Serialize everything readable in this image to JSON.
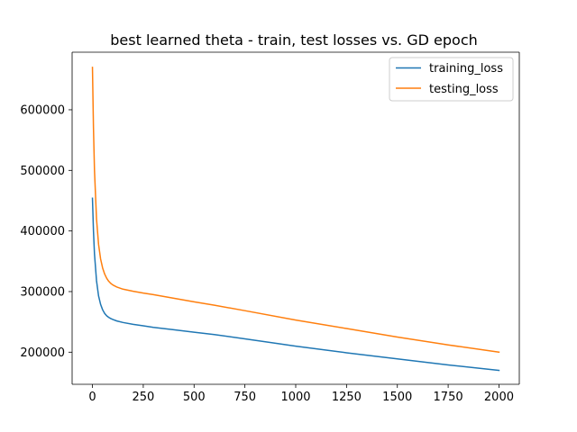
{
  "chart_data": {
    "type": "line",
    "title": "best learned theta - train, test losses vs. GD epoch",
    "xlabel": "",
    "ylabel": "",
    "xlim": [
      -100,
      2100
    ],
    "ylim": [
      147000,
      695000
    ],
    "xticks": [
      0,
      250,
      500,
      750,
      1000,
      1250,
      1500,
      1750,
      2000
    ],
    "yticks": [
      200000,
      300000,
      400000,
      500000,
      600000
    ],
    "grid": false,
    "legend_position": "top-right",
    "series": [
      {
        "name": "training_loss",
        "color": "#1f77b4",
        "x": [
          0,
          5,
          10,
          20,
          30,
          40,
          50,
          60,
          70,
          80,
          90,
          100,
          120,
          150,
          200,
          250,
          300,
          400,
          500,
          600,
          750,
          1000,
          1250,
          1500,
          1750,
          2000
        ],
        "y": [
          454000,
          400000,
          362000,
          318000,
          293000,
          279000,
          270000,
          264000,
          260000,
          257500,
          255500,
          254000,
          251500,
          249000,
          246000,
          243500,
          241000,
          237000,
          233000,
          229000,
          222000,
          210000,
          199000,
          189000,
          179000,
          170000
        ]
      },
      {
        "name": "testing_loss",
        "color": "#ff7f0e",
        "x": [
          0,
          5,
          10,
          20,
          30,
          40,
          50,
          60,
          70,
          80,
          90,
          100,
          120,
          150,
          200,
          250,
          300,
          400,
          500,
          600,
          750,
          1000,
          1250,
          1500,
          1750,
          2000
        ],
        "y": [
          670000,
          570000,
          500000,
          420000,
          378000,
          354000,
          339000,
          329000,
          322000,
          317000,
          313500,
          311000,
          307500,
          304000,
          300500,
          297500,
          295000,
          289000,
          283000,
          277500,
          268500,
          253000,
          239000,
          225000,
          212000,
          200000
        ]
      }
    ]
  }
}
